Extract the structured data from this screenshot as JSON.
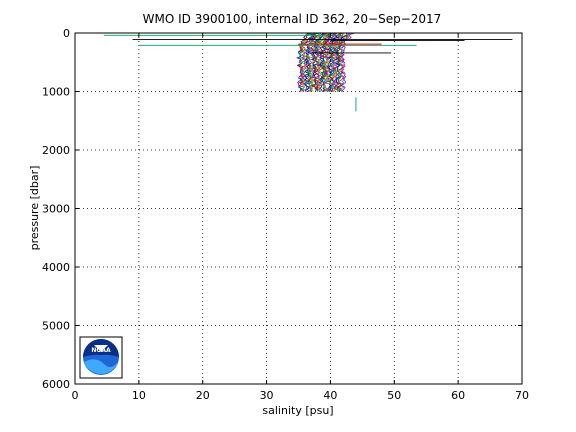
{
  "chart_data": {
    "type": "line",
    "title": "WMO ID 3900100, internal ID 362, 20−Sep−2017",
    "xlabel": "salinity [psu]",
    "ylabel": "pressure [dbar]",
    "xlim": [
      0,
      70
    ],
    "ylim": [
      0,
      6000
    ],
    "y_reversed": true,
    "grid": true,
    "x_ticks": [
      "0",
      "10",
      "20",
      "30",
      "40",
      "50",
      "60",
      "70"
    ],
    "y_ticks": [
      "0",
      "1000",
      "2000",
      "3000",
      "4000",
      "5000",
      "6000"
    ],
    "logo": "NOAA",
    "profile_count": 40,
    "profile_salinity_range": [
      35,
      43
    ],
    "profile_max_pressure": 1000,
    "outlier_segments": [
      {
        "x0": 9,
        "x1": 68.5,
        "y": 110,
        "color": "#000000"
      },
      {
        "x0": 40,
        "x1": 61,
        "y": 130,
        "color": "#000000"
      },
      {
        "x0": 4.5,
        "x1": 42,
        "y": 40,
        "color": "#00a060"
      },
      {
        "x0": 10,
        "x1": 53.5,
        "y": 210,
        "color": "#00a060"
      },
      {
        "x0": 35,
        "x1": 48,
        "y": 190,
        "color": "#ff0000"
      },
      {
        "x0": 37,
        "x1": 49.5,
        "y": 340,
        "color": "#000000"
      },
      {
        "x0": 44,
        "x1": 44,
        "y": 1100,
        "y1": 1340,
        "color": "#00a060"
      }
    ],
    "series_colors": [
      "#0000ff",
      "#008000",
      "#ff0000",
      "#00bfbf",
      "#bf00bf",
      "#bfbf00",
      "#404040"
    ]
  }
}
